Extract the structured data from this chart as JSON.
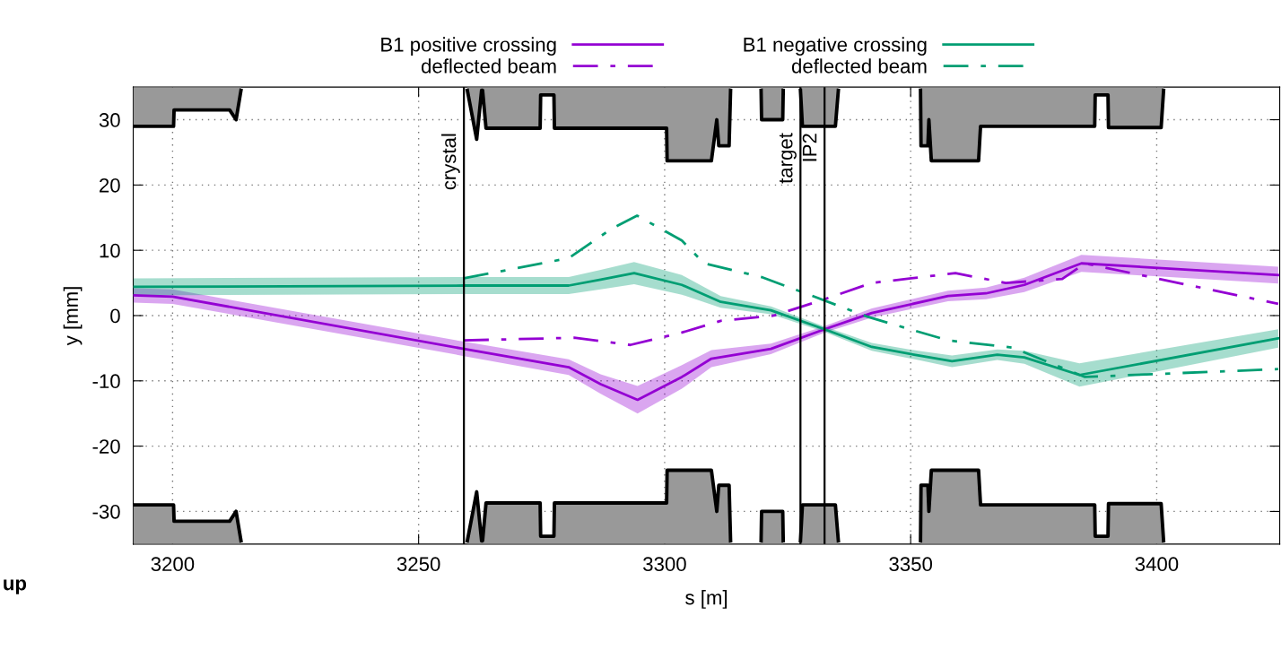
{
  "chart_data": {
    "type": "line",
    "xlabel": "s [m]",
    "ylabel": "y [mm]",
    "xlim": [
      3192,
      3425
    ],
    "ylim": [
      -35,
      35
    ],
    "xticks": [
      3200,
      3250,
      3300,
      3350,
      3400
    ],
    "yticks": [
      -30,
      -20,
      -10,
      0,
      10,
      20,
      30
    ],
    "grid": true,
    "legend": "top",
    "marker": "none",
    "ref_lines": [
      {
        "axis": "x",
        "value": 3259.2,
        "label": "crystal",
        "color": "#000000"
      },
      {
        "axis": "x",
        "value": 3327.6,
        "label": "target",
        "color": "#000000"
      },
      {
        "axis": "x",
        "value": 3332.5,
        "label": "IP2",
        "color": "#000000"
      }
    ],
    "annotations": [
      "up"
    ],
    "series": [
      {
        "type": "line",
        "color": "#000000",
        "x": [
          3192,
          3200.2,
          3200.3,
          3211.6,
          3212.9,
          3213.9,
          3236,
          3259.9,
          3261.8,
          3262.8,
          3263.0,
          3263.7,
          3274.7,
          3274.8,
          3277.5,
          3277.6,
          3300.4,
          3300.5,
          3309.5,
          3310.6,
          3311,
          3313.1,
          3313.4,
          3316,
          3319.6,
          3319.7,
          3324,
          3324.1,
          3326,
          3327.6,
          3328,
          3334.7,
          3335.3,
          3340,
          3352,
          3352.1,
          3353.5,
          3353.7,
          3354.2,
          3363.8,
          3364.2,
          3387.4,
          3387.5,
          3390.1,
          3390.2,
          3400.9,
          3401.4
        ],
        "values": [
          29,
          29,
          31.5,
          31.5,
          30,
          34.5,
          null,
          34.5,
          27,
          34.5,
          34.5,
          28.7,
          28.7,
          33.8,
          33.8,
          28.7,
          28.7,
          23.7,
          23.7,
          30,
          26,
          26,
          34.5,
          null,
          34.5,
          30,
          30,
          34.5,
          null,
          34.5,
          29,
          29,
          34.5,
          null,
          34.5,
          26,
          26,
          30,
          23.7,
          23.7,
          29,
          29,
          33.8,
          33.8,
          28.8,
          28.8,
          34.5
        ]
      },
      {
        "type": "line",
        "color": "#000000",
        "x": [
          3192,
          3200.2,
          3200.3,
          3211.6,
          3212.9,
          3213.9,
          3236,
          3259.9,
          3261.8,
          3262.8,
          3263.0,
          3263.7,
          3274.7,
          3274.8,
          3277.5,
          3277.6,
          3300.4,
          3300.5,
          3309.5,
          3310.6,
          3311,
          3313.1,
          3313.4,
          3316,
          3319.6,
          3319.7,
          3324,
          3324.1,
          3326,
          3327.6,
          3328,
          3334.7,
          3335.3,
          3340,
          3352,
          3352.1,
          3353.5,
          3353.7,
          3354.2,
          3363.8,
          3364.2,
          3387.4,
          3387.5,
          3390.1,
          3390.2,
          3400.9,
          3401.4
        ],
        "values": [
          -29,
          -29,
          -31.5,
          -31.5,
          -30,
          -34.5,
          null,
          -34.5,
          -27,
          -34.5,
          -34.5,
          -28.7,
          -28.7,
          -33.8,
          -33.8,
          -28.7,
          -28.7,
          -23.7,
          -23.7,
          -30,
          -26,
          -26,
          -34.5,
          null,
          -34.5,
          -30,
          -30,
          -34.5,
          null,
          -34.5,
          -29,
          -29,
          -34.5,
          null,
          -34.5,
          -26,
          -26,
          -30,
          -23.7,
          -23.7,
          -29,
          -29,
          -33.8,
          -33.8,
          -28.8,
          -28.8,
          -34.5
        ]
      },
      {
        "name": "B1 positive crossing",
        "color": "#9400d3",
        "line_style": "solid",
        "x": [
          3192,
          3200,
          3259.2,
          3280.5,
          3287,
          3294.5,
          3303.5,
          3309.5,
          3321.6,
          3332.5,
          3342.1,
          3357.6,
          3365.3,
          3373.1,
          3384.7,
          3424.7
        ],
        "values": [
          3.1,
          2.9,
          -5.1,
          -7.9,
          -10.5,
          -12.9,
          -9.4,
          -6.6,
          -5.1,
          -2.1,
          0.4,
          3.0,
          3.4,
          4.7,
          8.0,
          6.2
        ],
        "lower": [
          2.0,
          1.8,
          -6.2,
          -9.1,
          -12.0,
          -15.0,
          -11.2,
          -7.9,
          -5.9,
          -2.6,
          -0.3,
          2.2,
          2.5,
          3.6,
          6.7,
          4.9
        ],
        "upper": [
          4.2,
          4.0,
          -4.0,
          -6.7,
          -9.0,
          -10.8,
          -7.6,
          -5.3,
          -4.3,
          -1.6,
          1.1,
          3.8,
          4.3,
          5.8,
          9.3,
          7.5
        ]
      },
      {
        "name": "deflected beam",
        "color": "#9400d3",
        "line_style": "dashdot",
        "x": [
          3259.2,
          3281.6,
          3293,
          3303.5,
          3311.4,
          3322.2,
          3332.1,
          3342.1,
          3359.1,
          3369.3,
          3380.8,
          3385.4,
          3424.7
        ],
        "values": [
          -3.8,
          -3.4,
          -4.5,
          -2.6,
          -0.8,
          0.0,
          2.4,
          5.0,
          6.5,
          5.0,
          5.6,
          8.0,
          1.8
        ]
      },
      {
        "name": "B1 negative crossing",
        "color": "#009e73",
        "line_style": "solid",
        "x": [
          3192,
          3259.2,
          3280.5,
          3287,
          3293.8,
          3303.5,
          3311.4,
          3321.6,
          3332.5,
          3342.1,
          3351.5,
          3358.4,
          3367.6,
          3373.1,
          3384.3,
          3424.7
        ],
        "values": [
          4.4,
          4.6,
          4.6,
          5.5,
          6.5,
          4.7,
          2.1,
          0.8,
          -2.1,
          -4.8,
          -6.1,
          -7.0,
          -6.0,
          -6.4,
          -9.1,
          -3.5
        ],
        "lower": [
          3.1,
          3.3,
          3.3,
          4.0,
          4.8,
          3.2,
          1.2,
          0.2,
          -2.5,
          -5.4,
          -6.8,
          -7.9,
          -6.8,
          -7.4,
          -10.9,
          -4.9
        ],
        "upper": [
          5.7,
          5.9,
          5.9,
          7.0,
          8.2,
          6.2,
          3.0,
          1.4,
          -1.7,
          -4.2,
          -5.4,
          -6.1,
          -5.2,
          -5.4,
          -7.3,
          -2.1
        ]
      },
      {
        "name": "deflected beam",
        "color": "#009e73",
        "line_style": "dashdot",
        "x": [
          3259.2,
          3280.5,
          3289.2,
          3294.4,
          3303.5,
          3308,
          3319.7,
          3329,
          3341.3,
          3357.6,
          3370.7,
          3385.4,
          3424.7
        ],
        "values": [
          5.7,
          8.8,
          13.3,
          15.3,
          11.5,
          8.0,
          5.9,
          3.3,
          -0.2,
          -3.8,
          -4.9,
          -9.4,
          -8.2
        ]
      }
    ]
  }
}
